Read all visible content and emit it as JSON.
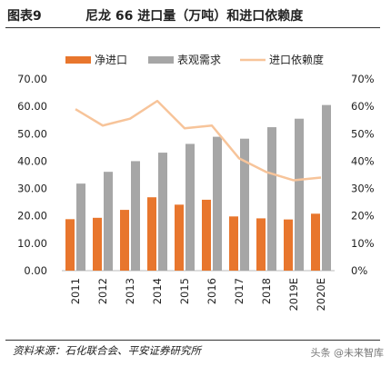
{
  "header": {
    "fig_label": "图表9",
    "title": "尼龙 66 进口量（万吨）和进口依赖度"
  },
  "chart_data": {
    "type": "bar",
    "categories": [
      "2011",
      "2012",
      "2013",
      "2014",
      "2015",
      "2016",
      "2017",
      "2018",
      "2019E",
      "2020E"
    ],
    "series": [
      {
        "name": "净进口",
        "type": "bar",
        "axis": "left",
        "color": "#E8762D",
        "values": [
          18.8,
          19.3,
          22.2,
          26.8,
          24.1,
          25.9,
          19.8,
          19.1,
          18.7,
          20.8
        ]
      },
      {
        "name": "表观需求",
        "type": "bar",
        "axis": "left",
        "color": "#A6A6A6",
        "values": [
          31.8,
          36.1,
          40.0,
          43.1,
          46.3,
          48.9,
          48.2,
          52.4,
          55.5,
          60.5
        ]
      },
      {
        "name": "进口依赖度",
        "type": "line",
        "axis": "right",
        "color": "#F7C49A",
        "values": [
          0.59,
          0.53,
          0.555,
          0.62,
          0.52,
          0.53,
          0.41,
          0.36,
          0.33,
          0.34
        ]
      }
    ],
    "y_left": {
      "ylim": [
        0,
        70
      ],
      "ticks": [
        "0.00",
        "10.00",
        "20.00",
        "30.00",
        "40.00",
        "50.00",
        "60.00",
        "70.00"
      ]
    },
    "y_right": {
      "ylim": [
        0,
        0.7
      ],
      "ticks": [
        "0%",
        "10%",
        "20%",
        "30%",
        "40%",
        "50%",
        "60%",
        "70%"
      ]
    },
    "legend_position": "top",
    "grid": false
  },
  "footer": {
    "source": "资料来源：石化联合会、平安证券研究所",
    "watermark": "头条 @未来智库"
  }
}
